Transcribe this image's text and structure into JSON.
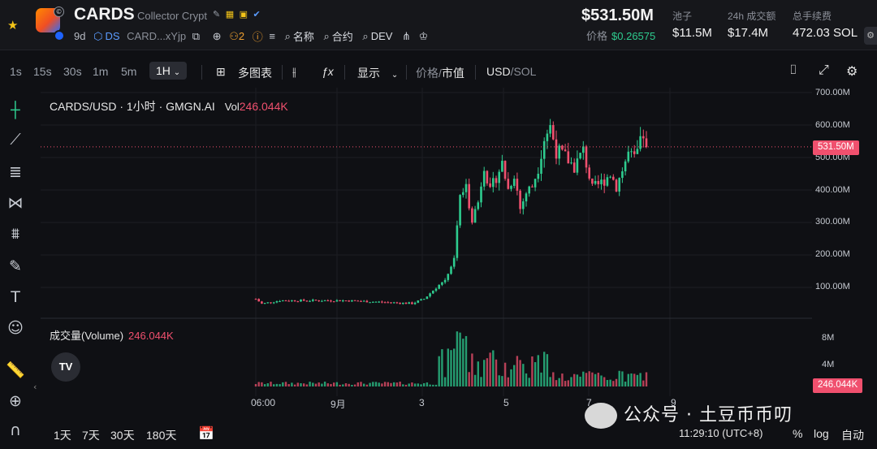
{
  "header": {
    "token_symbol": "CARDS",
    "token_name": "Collector Crypt",
    "age": "9d",
    "ds_label": "DS",
    "address": "CARD...xYjp",
    "holders_count": "2",
    "name_search": "名称",
    "contract_search": "合约",
    "dev_search": "DEV",
    "market_cap": "$531.50M",
    "price_label": "价格",
    "price_value": "$0.26575",
    "stats": [
      {
        "label": "池子",
        "value": "$11.5M"
      },
      {
        "label": "24h 成交额",
        "value": "$17.4M"
      },
      {
        "label": "总手续费",
        "value": "472.03 SOL"
      }
    ]
  },
  "toolbar": {
    "intervals": [
      "1s",
      "15s",
      "30s",
      "1m",
      "5m"
    ],
    "active_interval": "1H",
    "multi_chart": "多图表",
    "display": "显示",
    "price_toggle": "价格",
    "mcap_toggle": "市值",
    "currency_usd": "USD",
    "currency_sol": "SOL"
  },
  "legend": {
    "pair": "CARDS/USD · 1小时 · GMGN.AI",
    "vol_label": "Vol",
    "vol_value": "246.044K",
    "volume_title": "成交量(Volume)",
    "volume_value": "246.044K",
    "tv_logo": "TV"
  },
  "bottom": {
    "ranges": [
      "1天",
      "7天",
      "30天",
      "180天"
    ],
    "clock": "11:29:10 (UTC+8)",
    "percent": "%",
    "log": "log",
    "auto": "自动"
  },
  "watermark": "公众号 · 土豆币币叨",
  "colors": {
    "up": "#2ecc8f",
    "down": "#f0506e",
    "accent": "#5b9cff"
  },
  "chart_data": {
    "type": "candlestick",
    "title": "CARDS/USD · 1小时 · GMGN.AI",
    "y_unit": "USD market cap",
    "y_ticks": [
      "700.00M",
      "600.00M",
      "500.00M",
      "400.00M",
      "300.00M",
      "200.00M",
      "100.00M"
    ],
    "ylim": [
      0,
      700
    ],
    "x_ticks": [
      "06:00",
      "9月",
      "3",
      "5",
      "7",
      "9"
    ],
    "last_value_label": "531.50M",
    "volume_ticks": [
      "8M",
      "4M"
    ],
    "volume_last_label": "246.044K",
    "close_series": [
      {
        "x": 0,
        "y": 60
      },
      {
        "x": 2,
        "y": 45
      },
      {
        "x": 8,
        "y": 55
      },
      {
        "x": 30,
        "y": 55
      },
      {
        "x": 52,
        "y": 46
      },
      {
        "x": 56,
        "y": 60
      },
      {
        "x": 60,
        "y": 95
      },
      {
        "x": 63,
        "y": 120
      },
      {
        "x": 66,
        "y": 185
      },
      {
        "x": 68,
        "y": 380
      },
      {
        "x": 70,
        "y": 400
      },
      {
        "x": 72,
        "y": 310
      },
      {
        "x": 74,
        "y": 360
      },
      {
        "x": 76,
        "y": 480
      },
      {
        "x": 78,
        "y": 390
      },
      {
        "x": 80,
        "y": 440
      },
      {
        "x": 82,
        "y": 480
      },
      {
        "x": 84,
        "y": 400
      },
      {
        "x": 86,
        "y": 450
      },
      {
        "x": 88,
        "y": 340
      },
      {
        "x": 90,
        "y": 390
      },
      {
        "x": 92,
        "y": 410
      },
      {
        "x": 94,
        "y": 470
      },
      {
        "x": 96,
        "y": 560
      },
      {
        "x": 98,
        "y": 595
      },
      {
        "x": 100,
        "y": 520
      },
      {
        "x": 103,
        "y": 500
      },
      {
        "x": 106,
        "y": 470
      },
      {
        "x": 109,
        "y": 520
      },
      {
        "x": 112,
        "y": 400
      },
      {
        "x": 115,
        "y": 420
      },
      {
        "x": 118,
        "y": 450
      },
      {
        "x": 120,
        "y": 410
      },
      {
        "x": 122,
        "y": 460
      },
      {
        "x": 124,
        "y": 510
      },
      {
        "x": 126,
        "y": 490
      },
      {
        "x": 128,
        "y": 540
      },
      {
        "x": 129,
        "y": 570
      },
      {
        "x": 130,
        "y": 531
      }
    ]
  }
}
